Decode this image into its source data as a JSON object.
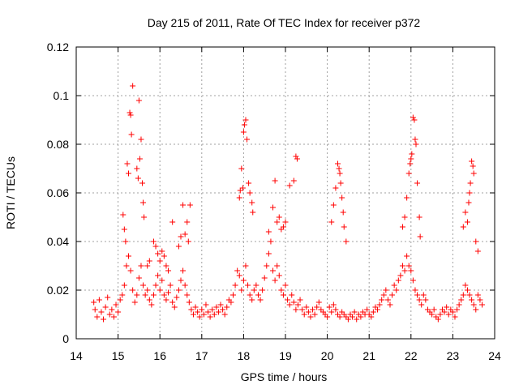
{
  "chart_data": {
    "type": "scatter",
    "title": "Day 215 of 2011, Rate Of TEC Index for receiver p372",
    "xlabel": "GPS time / hours",
    "ylabel": "ROTI / TECUs",
    "xlim": [
      14,
      24
    ],
    "ylim": [
      0,
      0.12
    ],
    "x_ticks": [
      "14",
      "15",
      "16",
      "17",
      "18",
      "19",
      "20",
      "21",
      "22",
      "23",
      "24"
    ],
    "y_ticks": [
      "0",
      "0.02",
      "0.04",
      "0.06",
      "0.08",
      "0.1",
      "0.12"
    ],
    "grid": true,
    "marker": "plus",
    "color": "#ff0000",
    "series": [
      {
        "x": [
          14.42,
          14.45,
          14.5,
          14.55,
          14.6,
          14.65,
          14.7,
          14.75,
          14.8,
          14.85,
          14.9,
          14.95,
          15.0,
          15.05,
          15.1,
          15.15,
          15.2,
          15.25,
          15.3,
          15.35,
          15.4,
          15.45,
          15.5,
          15.55,
          15.6,
          15.65,
          15.7,
          15.75,
          15.8,
          15.85,
          15.9,
          15.95,
          16.0,
          16.05,
          16.1,
          16.15,
          16.2,
          16.25,
          16.3,
          16.35,
          16.4,
          16.45,
          16.5,
          16.55,
          16.6,
          16.65,
          16.7,
          16.75,
          16.8,
          16.85,
          16.9,
          16.95,
          17.0,
          17.05,
          17.1,
          17.15,
          17.2,
          17.25,
          17.3,
          17.35,
          17.4,
          17.45,
          17.5,
          17.55,
          17.6,
          17.65,
          17.7,
          17.75,
          17.8,
          17.85,
          17.9,
          17.95,
          18.0,
          18.05,
          18.1,
          18.15,
          18.2,
          18.25,
          18.3,
          18.35,
          18.4,
          18.45,
          18.5,
          18.55,
          18.6,
          18.65,
          18.7,
          18.75,
          18.8,
          18.85,
          18.9,
          18.95,
          19.0,
          19.05,
          19.1,
          19.15,
          19.2,
          19.25,
          19.3,
          19.35,
          19.4,
          19.45,
          19.5,
          19.55,
          19.6,
          19.65,
          19.7,
          19.75,
          19.8,
          19.85,
          19.9,
          19.95,
          20.0,
          20.05,
          20.1,
          20.15,
          20.2,
          20.25,
          20.3,
          20.35,
          20.4,
          20.45,
          20.5,
          20.55,
          20.6,
          20.65,
          20.7,
          20.75,
          20.8,
          20.85,
          20.9,
          20.95,
          21.0,
          21.05,
          21.1,
          21.15,
          21.2,
          21.25,
          21.3,
          21.35,
          21.4,
          21.45,
          21.5,
          21.55,
          21.6,
          21.65,
          21.7,
          21.75,
          21.8,
          21.85,
          21.9,
          21.95,
          22.0,
          22.05,
          22.1,
          22.15,
          22.2,
          22.25,
          22.3,
          22.35,
          22.4,
          22.45,
          22.5,
          22.55,
          22.6,
          22.65,
          22.7,
          22.75,
          22.8,
          22.85,
          22.9,
          22.95,
          23.0,
          23.05,
          23.1,
          23.15,
          23.2,
          23.25,
          23.3,
          23.35,
          23.4,
          23.45,
          23.5,
          23.55,
          23.6,
          23.65,
          23.7,
          15.28,
          15.3,
          15.32,
          15.35,
          15.22,
          15.25,
          15.5,
          15.52,
          15.55,
          15.45,
          15.48,
          15.58,
          15.6,
          15.62,
          15.12,
          15.15,
          15.18,
          16.72,
          16.65,
          16.6,
          16.68,
          16.3,
          18.0,
          18.02,
          18.05,
          18.08,
          17.95,
          17.92,
          17.98,
          17.9,
          18.12,
          18.15,
          18.2,
          18.22,
          19.25,
          19.28,
          19.2,
          19.1,
          19.0,
          18.95,
          18.9,
          18.85,
          18.8,
          18.75,
          18.7,
          18.6,
          20.25,
          20.28,
          20.3,
          20.32,
          20.35,
          20.38,
          20.4,
          20.45,
          20.2,
          20.15,
          20.1,
          22.05,
          22.08,
          22.1,
          22.12,
          22.02,
          22.0,
          21.98,
          21.95,
          22.15,
          22.2,
          22.22,
          21.9,
          21.85,
          21.8,
          23.45,
          23.48,
          23.5,
          23.42,
          23.4,
          23.38,
          23.35,
          23.55,
          23.3,
          23.25,
          23.6,
          15.85,
          15.9,
          15.95,
          16.0,
          16.05,
          16.1,
          16.15,
          16.2,
          15.75,
          15.7,
          16.55,
          16.5,
          16.45
        ],
        "y": [
          0.015,
          0.012,
          0.009,
          0.016,
          0.011,
          0.008,
          0.013,
          0.017,
          0.01,
          0.012,
          0.009,
          0.014,
          0.011,
          0.016,
          0.018,
          0.022,
          0.03,
          0.034,
          0.028,
          0.02,
          0.015,
          0.018,
          0.025,
          0.03,
          0.022,
          0.018,
          0.02,
          0.016,
          0.014,
          0.018,
          0.022,
          0.026,
          0.02,
          0.024,
          0.018,
          0.016,
          0.019,
          0.022,
          0.015,
          0.013,
          0.017,
          0.02,
          0.024,
          0.028,
          0.022,
          0.018,
          0.015,
          0.012,
          0.01,
          0.013,
          0.011,
          0.009,
          0.012,
          0.01,
          0.014,
          0.011,
          0.009,
          0.012,
          0.01,
          0.013,
          0.011,
          0.014,
          0.012,
          0.01,
          0.013,
          0.016,
          0.015,
          0.018,
          0.022,
          0.028,
          0.026,
          0.02,
          0.024,
          0.03,
          0.022,
          0.018,
          0.016,
          0.02,
          0.022,
          0.018,
          0.016,
          0.02,
          0.025,
          0.03,
          0.035,
          0.04,
          0.028,
          0.024,
          0.03,
          0.026,
          0.02,
          0.018,
          0.022,
          0.016,
          0.014,
          0.018,
          0.015,
          0.012,
          0.014,
          0.016,
          0.012,
          0.01,
          0.013,
          0.011,
          0.009,
          0.012,
          0.01,
          0.013,
          0.015,
          0.012,
          0.011,
          0.01,
          0.009,
          0.013,
          0.011,
          0.014,
          0.012,
          0.01,
          0.009,
          0.011,
          0.01,
          0.009,
          0.008,
          0.01,
          0.009,
          0.011,
          0.008,
          0.01,
          0.009,
          0.011,
          0.01,
          0.012,
          0.01,
          0.009,
          0.011,
          0.013,
          0.012,
          0.014,
          0.016,
          0.018,
          0.02,
          0.016,
          0.014,
          0.018,
          0.022,
          0.02,
          0.024,
          0.026,
          0.03,
          0.028,
          0.034,
          0.03,
          0.028,
          0.024,
          0.02,
          0.018,
          0.016,
          0.014,
          0.018,
          0.016,
          0.012,
          0.011,
          0.01,
          0.012,
          0.009,
          0.008,
          0.01,
          0.012,
          0.011,
          0.013,
          0.01,
          0.012,
          0.011,
          0.009,
          0.012,
          0.014,
          0.016,
          0.018,
          0.022,
          0.02,
          0.018,
          0.016,
          0.014,
          0.012,
          0.018,
          0.016,
          0.014,
          0.093,
          0.092,
          0.084,
          0.104,
          0.072,
          0.068,
          0.098,
          0.074,
          0.082,
          0.07,
          0.066,
          0.064,
          0.056,
          0.05,
          0.051,
          0.045,
          0.04,
          0.055,
          0.048,
          0.043,
          0.04,
          0.048,
          0.085,
          0.088,
          0.09,
          0.082,
          0.07,
          0.061,
          0.062,
          0.058,
          0.064,
          0.06,
          0.056,
          0.052,
          0.075,
          0.074,
          0.065,
          0.063,
          0.048,
          0.046,
          0.045,
          0.05,
          0.048,
          0.065,
          0.054,
          0.044,
          0.072,
          0.07,
          0.068,
          0.064,
          0.058,
          0.052,
          0.046,
          0.04,
          0.062,
          0.055,
          0.048,
          0.091,
          0.09,
          0.082,
          0.08,
          0.076,
          0.074,
          0.072,
          0.068,
          0.064,
          0.05,
          0.042,
          0.058,
          0.05,
          0.046,
          0.073,
          0.071,
          0.068,
          0.064,
          0.06,
          0.056,
          0.048,
          0.04,
          0.052,
          0.046,
          0.036,
          0.04,
          0.038,
          0.035,
          0.032,
          0.036,
          0.034,
          0.03,
          0.028,
          0.032,
          0.03,
          0.055,
          0.042,
          0.038
        ]
      }
    ]
  }
}
